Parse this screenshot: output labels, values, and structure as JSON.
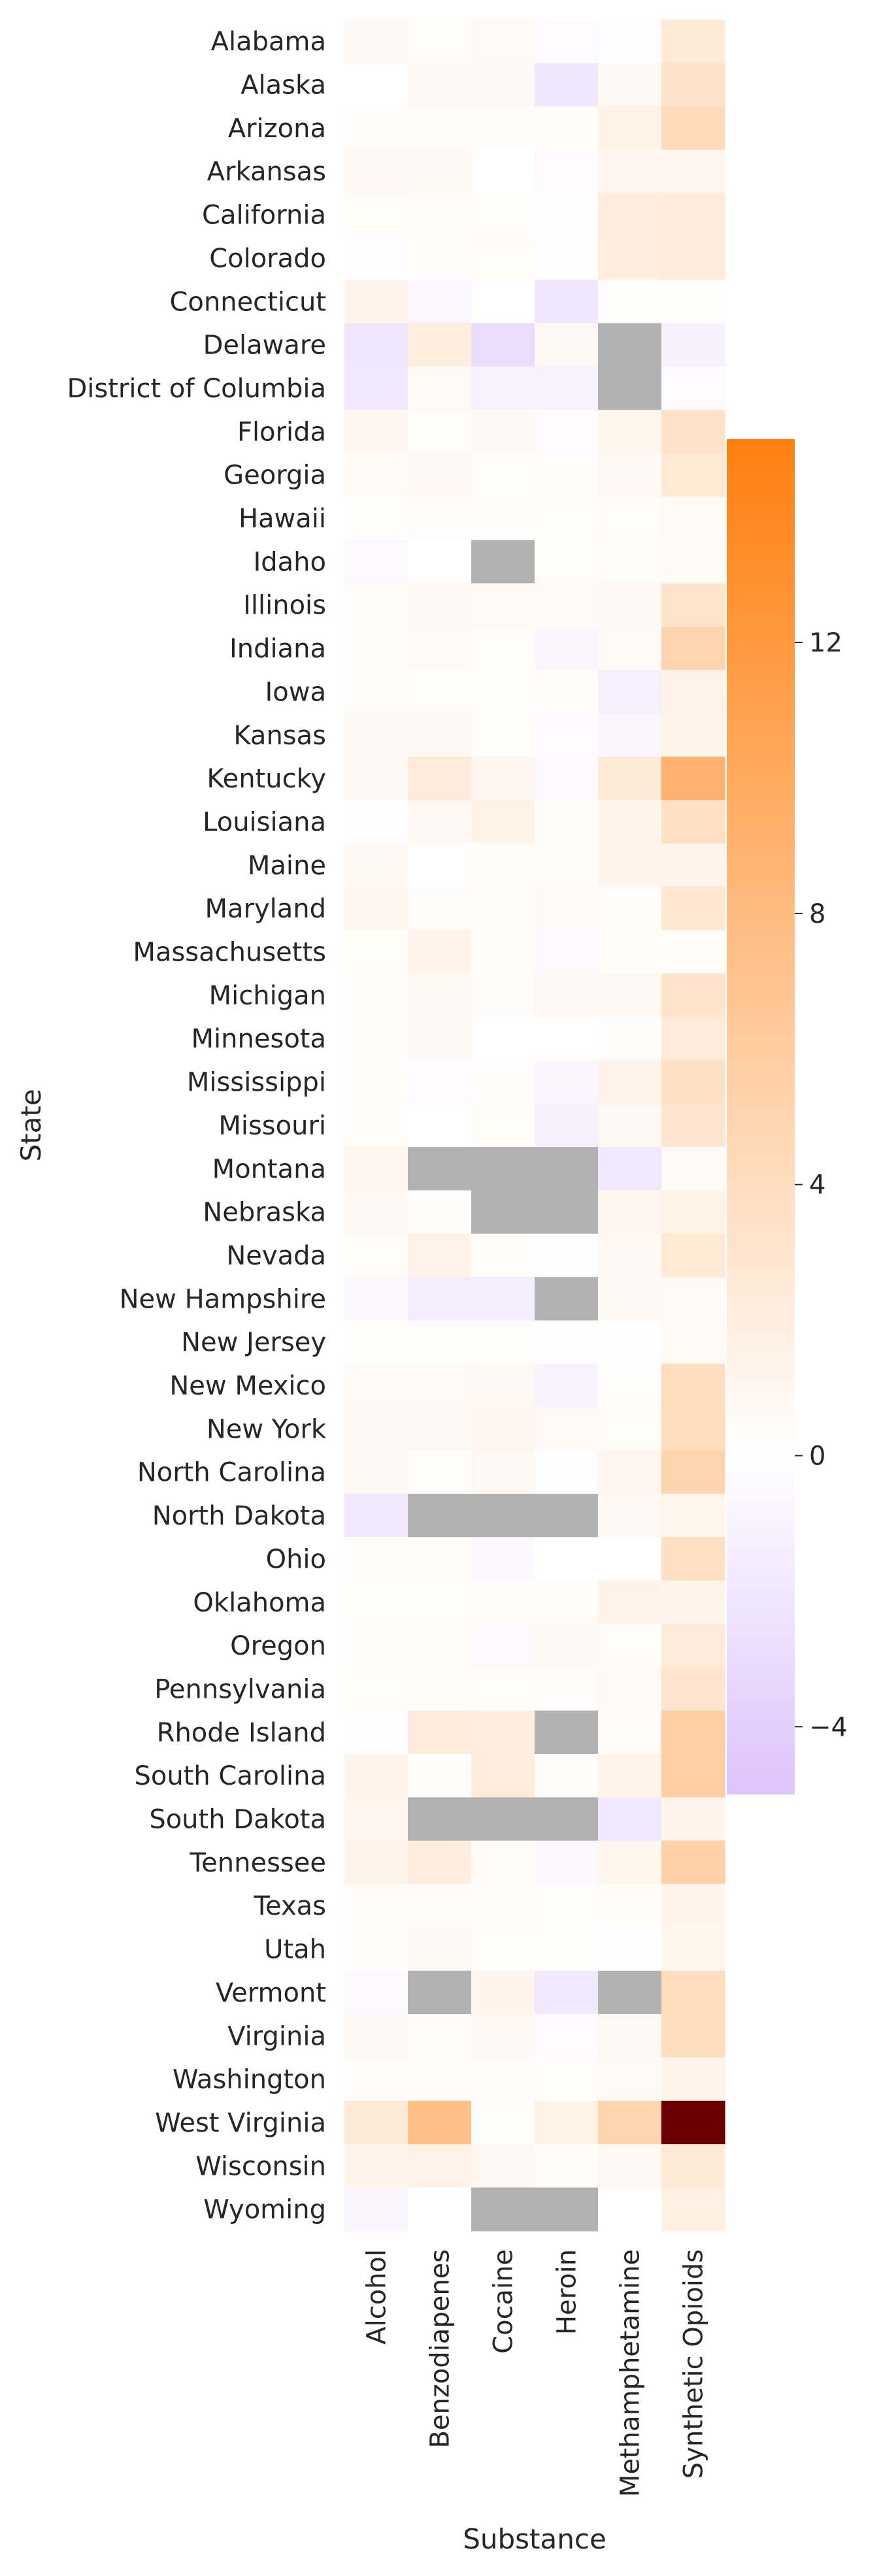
{
  "chart_data": {
    "type": "heatmap",
    "title": "",
    "xlabel": "Substance",
    "ylabel": "State",
    "columns": [
      "Alcohol",
      "Benzodiapenes",
      "Cocaine",
      "Heroin",
      "Methamphetamine",
      "Synthetic Opioids"
    ],
    "rows": [
      "Alabama",
      "Alaska",
      "Arizona",
      "Arkansas",
      "California",
      "Colorado",
      "Connecticut",
      "Delaware",
      "District of Columbia",
      "Florida",
      "Georgia",
      "Hawaii",
      "Idaho",
      "Illinois",
      "Indiana",
      "Iowa",
      "Kansas",
      "Kentucky",
      "Louisiana",
      "Maine",
      "Maryland",
      "Massachusetts",
      "Michigan",
      "Minnesota",
      "Mississippi",
      "Missouri",
      "Montana",
      "Nebraska",
      "Nevada",
      "New Hampshire",
      "New Jersey",
      "New Mexico",
      "New York",
      "North Carolina",
      "North Dakota",
      "Ohio",
      "Oklahoma",
      "Oregon",
      "Pennsylvania",
      "Rhode Island",
      "South Carolina",
      "South Dakota",
      "Tennessee",
      "Texas",
      "Utah",
      "Vermont",
      "Virginia",
      "Washington",
      "West Virginia",
      "Wisconsin",
      "Wyoming"
    ],
    "values": [
      [
        0.7,
        0.1,
        0.6,
        -0.3,
        -0.2,
        2.5
      ],
      [
        0.0,
        0.8,
        0.9,
        -2.0,
        0.9,
        3.4
      ],
      [
        0.2,
        0.3,
        0.3,
        0.2,
        1.5,
        4.2
      ],
      [
        0.8,
        0.7,
        0.0,
        -0.3,
        1.0,
        1.0
      ],
      [
        0.5,
        0.4,
        0.1,
        -0.2,
        2.0,
        2.4
      ],
      [
        -0.2,
        0.4,
        0.5,
        -0.1,
        2.0,
        2.4
      ],
      [
        1.2,
        -0.7,
        0.0,
        -2.1,
        0.1,
        0.1
      ],
      [
        -2.0,
        2.2,
        -2.8,
        0.9,
        null,
        -1.2
      ],
      [
        -1.8,
        0.6,
        -1.1,
        -1.1,
        null,
        -0.3
      ],
      [
        1.0,
        0.5,
        0.7,
        -0.3,
        1.1,
        3.4
      ],
      [
        0.6,
        0.8,
        0.1,
        0.4,
        0.9,
        2.7
      ],
      [
        0.1,
        0.2,
        0.2,
        0.1,
        0.5,
        0.6
      ],
      [
        -0.5,
        0.0,
        null,
        0.1,
        0.2,
        0.6
      ],
      [
        0.3,
        0.8,
        0.6,
        0.6,
        0.8,
        3.2
      ],
      [
        0.2,
        0.6,
        0.1,
        -0.8,
        0.6,
        5.0
      ],
      [
        0.4,
        0.5,
        0.1,
        0.3,
        -1.3,
        1.4
      ],
      [
        0.7,
        0.9,
        0.1,
        -0.3,
        -0.8,
        1.3
      ],
      [
        0.7,
        2.3,
        1.0,
        -0.5,
        2.5,
        9.0
      ],
      [
        -0.2,
        0.8,
        1.5,
        0.2,
        1.2,
        3.6
      ],
      [
        0.7,
        0.0,
        0.4,
        0.3,
        1.2,
        1.3
      ],
      [
        1.0,
        0.3,
        0.3,
        0.6,
        0.2,
        2.8
      ],
      [
        0.5,
        1.2,
        0.4,
        -0.5,
        0.3,
        0.2
      ],
      [
        0.3,
        0.7,
        0.4,
        0.9,
        0.9,
        3.3
      ],
      [
        0.3,
        0.7,
        0.0,
        0.0,
        0.2,
        2.4
      ],
      [
        0.4,
        -0.3,
        0.2,
        -0.8,
        1.4,
        3.6
      ],
      [
        0.4,
        0.0,
        0.5,
        -1.2,
        0.8,
        3.0
      ],
      [
        1.0,
        null,
        null,
        null,
        -1.9,
        0.6
      ],
      [
        0.9,
        0.4,
        null,
        null,
        1.0,
        1.5
      ],
      [
        0.5,
        1.4,
        0.3,
        -0.2,
        0.8,
        2.7
      ],
      [
        -0.7,
        -1.5,
        -1.4,
        null,
        0.7,
        0.6
      ],
      [
        0.1,
        0.1,
        0.1,
        -0.1,
        -0.1,
        0.6
      ],
      [
        0.6,
        0.6,
        0.9,
        -1.1,
        0.1,
        4.0
      ],
      [
        0.9,
        0.8,
        1.0,
        0.6,
        0.5,
        4.0
      ],
      [
        0.9,
        0.1,
        0.8,
        -0.2,
        1.0,
        5.0
      ],
      [
        -1.9,
        null,
        null,
        null,
        0.9,
        1.1
      ],
      [
        0.3,
        0.4,
        -0.6,
        0.0,
        0.0,
        3.8
      ],
      [
        0.5,
        0.1,
        0.4,
        0.4,
        1.4,
        1.2
      ],
      [
        0.2,
        0.2,
        -0.5,
        0.7,
        0.5,
        2.4
      ],
      [
        0.5,
        0.4,
        0.1,
        0.2,
        0.6,
        3.0
      ],
      [
        -0.2,
        2.3,
        2.2,
        null,
        0.4,
        5.8
      ],
      [
        1.2,
        0.2,
        2.2,
        0.3,
        1.3,
        5.8
      ],
      [
        1.0,
        null,
        null,
        null,
        -1.8,
        1.2
      ],
      [
        1.3,
        2.0,
        0.4,
        -0.6,
        1.1,
        5.4
      ],
      [
        0.4,
        0.4,
        0.3,
        0.1,
        0.3,
        1.2
      ],
      [
        0.3,
        0.9,
        0.1,
        0.1,
        -0.2,
        1.1
      ],
      [
        -0.5,
        null,
        1.2,
        -1.9,
        null,
        4.0
      ],
      [
        0.8,
        0.4,
        0.8,
        -0.3,
        0.8,
        4.0
      ],
      [
        0.3,
        0.3,
        0.3,
        0.1,
        0.6,
        1.3
      ],
      [
        2.5,
        7.5,
        0.1,
        1.5,
        5.0,
        20.0
      ],
      [
        1.2,
        1.4,
        0.9,
        0.2,
        0.9,
        2.5
      ],
      [
        -0.8,
        0.0,
        null,
        null,
        0.0,
        1.7
      ]
    ],
    "missing_color": "#b2b2b2",
    "colorbar": {
      "min": -5,
      "max": 15,
      "ticks": [
        -4,
        0,
        4,
        8,
        12
      ],
      "tick_labels": [
        "−4",
        "0",
        "4",
        "8",
        "12"
      ],
      "colors": {
        "low": "#ddc3fb",
        "zero": "#ffffff",
        "mid": "#ffbf87",
        "high": "#ff7f0e",
        "over": "#6b0000"
      }
    },
    "grid": false,
    "legend": "colorbar-right"
  }
}
